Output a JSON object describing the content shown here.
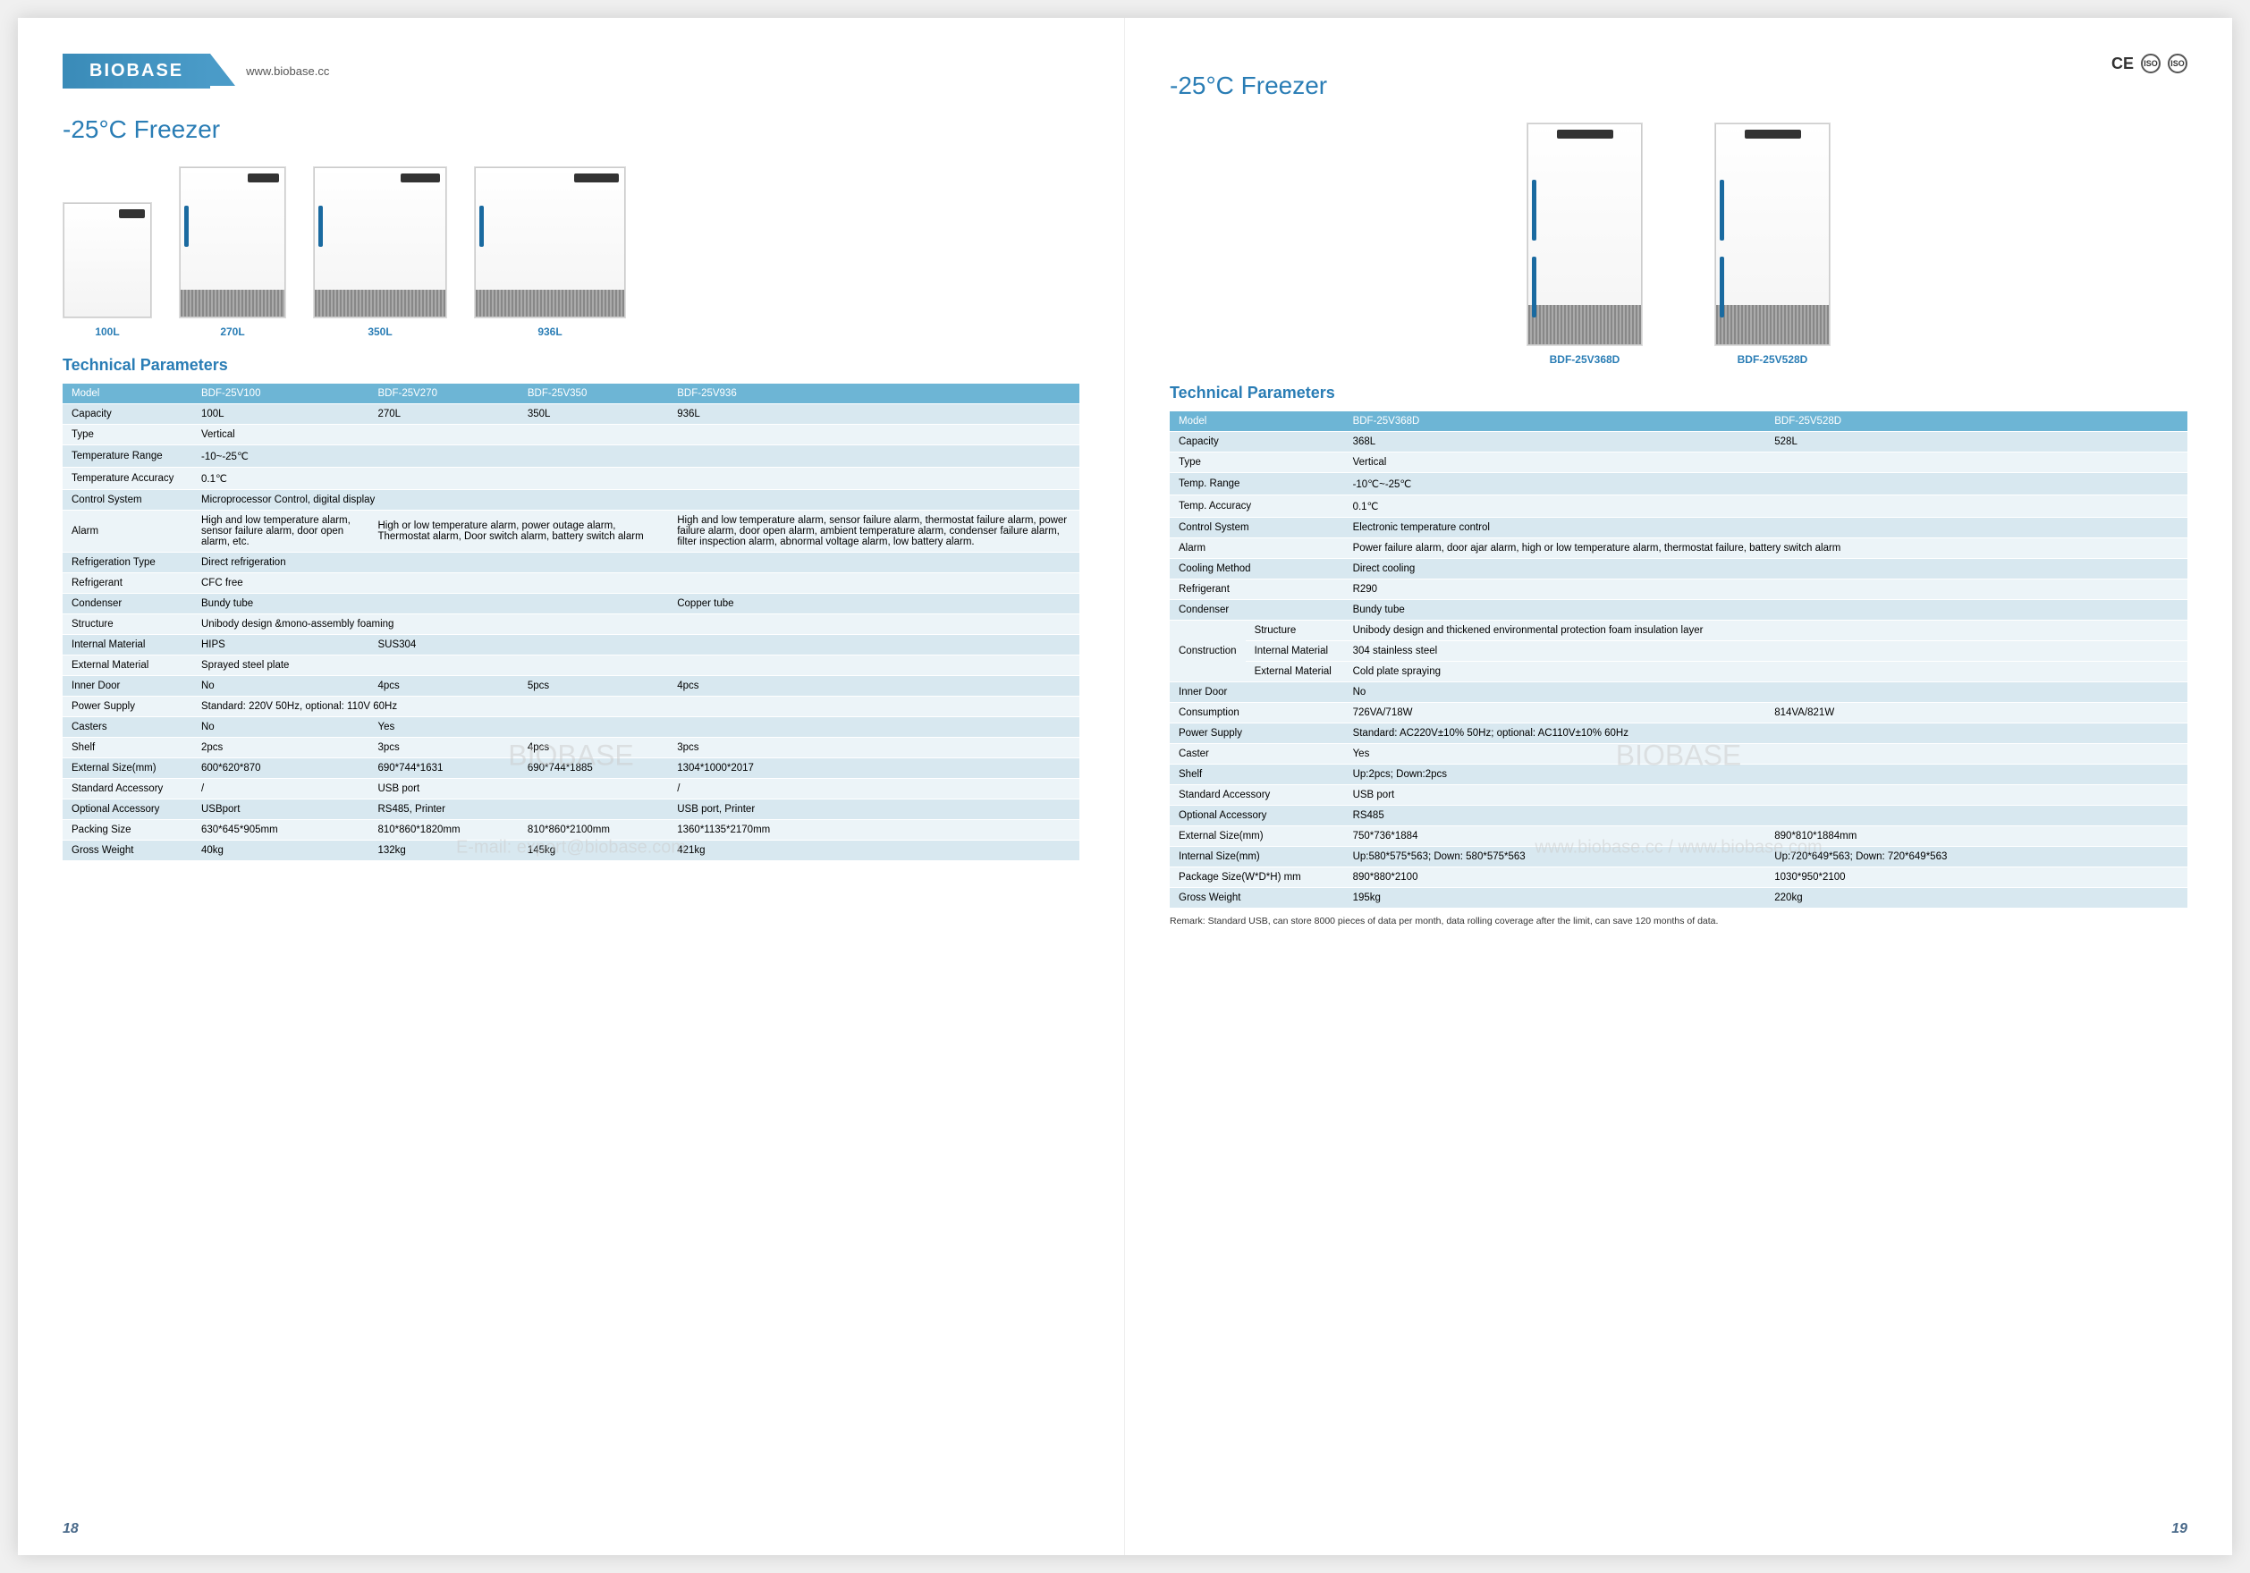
{
  "brand": "BIOBASE",
  "url": "www.biobase.cc",
  "cert": {
    "ce": "CE"
  },
  "watermark": {
    "big": "BIOBASE",
    "sub": "E-mail: export@biobase.com",
    "sub2": "www.biobase.cc / www.biobase.com"
  },
  "pageNumLeft": "18",
  "pageNumRight": "19",
  "left": {
    "title": "-25°C Freezer",
    "products": [
      {
        "label": "100L"
      },
      {
        "label": "270L"
      },
      {
        "label": "350L"
      },
      {
        "label": "936L"
      }
    ],
    "paramsTitle": "Technical Parameters",
    "header": [
      "Model",
      "BDF-25V100",
      "BDF-25V270",
      "BDF-25V350",
      "BDF-25V936"
    ],
    "rows": [
      {
        "k": "Capacity",
        "v": [
          "100L",
          "270L",
          "350L",
          "936L"
        ],
        "cls": "a"
      },
      {
        "k": "Type",
        "v": [
          "Vertical"
        ],
        "span": 4,
        "cls": "b"
      },
      {
        "k": "Temperature Range",
        "v": [
          "-10~-25℃"
        ],
        "span": 4,
        "cls": "a"
      },
      {
        "k": "Temperature Accuracy",
        "v": [
          "0.1℃"
        ],
        "span": 4,
        "cls": "b"
      },
      {
        "k": "Control System",
        "v": [
          "Microprocessor Control, digital display"
        ],
        "span": 4,
        "cls": "a"
      },
      {
        "k": "Alarm",
        "v": [
          "High and low temperature alarm, sensor failure alarm, door open alarm, etc.",
          "High or low temperature alarm, power outage alarm, Thermostat alarm, Door switch alarm, battery switch alarm",
          "",
          "High and low temperature alarm, sensor failure alarm, thermostat failure alarm, power failure alarm, door open alarm, ambient temperature alarm, condenser failure alarm, filter inspection alarm, abnormal voltage alarm, low battery alarm."
        ],
        "merge23": true,
        "cls": "b"
      },
      {
        "k": "Refrigeration Type",
        "v": [
          "Direct refrigeration"
        ],
        "span": 4,
        "cls": "a"
      },
      {
        "k": "Refrigerant",
        "v": [
          "CFC free"
        ],
        "span": 4,
        "cls": "b"
      },
      {
        "k": "Condenser",
        "v": [
          "Bundy tube",
          "",
          "",
          "Copper tube"
        ],
        "merge13": true,
        "cls": "a"
      },
      {
        "k": "Structure",
        "v": [
          "Unibody design &mono-assembly foaming"
        ],
        "span": 4,
        "cls": "b"
      },
      {
        "k": "Internal Material",
        "v": [
          "HIPS",
          "SUS304",
          "",
          ""
        ],
        "merge24": true,
        "cls": "a"
      },
      {
        "k": "External Material",
        "v": [
          "Sprayed steel plate"
        ],
        "span": 4,
        "cls": "b"
      },
      {
        "k": "Inner Door",
        "v": [
          "No",
          "4pcs",
          "5pcs",
          "4pcs"
        ],
        "cls": "a"
      },
      {
        "k": "Power Supply",
        "v": [
          "Standard: 220V 50Hz, optional: 110V 60Hz"
        ],
        "span": 4,
        "cls": "b"
      },
      {
        "k": "Casters",
        "v": [
          "No",
          "Yes",
          "",
          ""
        ],
        "merge24": true,
        "cls": "a"
      },
      {
        "k": "Shelf",
        "v": [
          "2pcs",
          "3pcs",
          "4pcs",
          "3pcs"
        ],
        "cls": "b"
      },
      {
        "k": "External Size(mm)",
        "v": [
          "600*620*870",
          "690*744*1631",
          "690*744*1885",
          "1304*1000*2017"
        ],
        "cls": "a"
      },
      {
        "k": "Standard Accessory",
        "v": [
          "/",
          "USB port",
          "",
          "/"
        ],
        "merge23": true,
        "cls": "b"
      },
      {
        "k": "Optional Accessory",
        "v": [
          "USBport",
          "RS485, Printer",
          "",
          "USB port, Printer"
        ],
        "merge23": true,
        "cls": "a"
      },
      {
        "k": "Packing Size",
        "v": [
          "630*645*905mm",
          "810*860*1820mm",
          "810*860*2100mm",
          "1360*1135*2170mm"
        ],
        "cls": "b"
      },
      {
        "k": "Gross Weight",
        "v": [
          "40kg",
          "132kg",
          "145kg",
          "421kg"
        ],
        "cls": "a"
      }
    ]
  },
  "right": {
    "title": "-25°C Freezer",
    "products": [
      {
        "label": "BDF-25V368D"
      },
      {
        "label": "BDF-25V528D"
      }
    ],
    "paramsTitle": "Technical Parameters",
    "header": [
      "Model",
      "BDF-25V368D",
      "BDF-25V528D"
    ],
    "rows": [
      {
        "k": "Capacity",
        "v": [
          "368L",
          "528L"
        ],
        "cls": "a"
      },
      {
        "k": "Type",
        "v": [
          "Vertical"
        ],
        "span": 2,
        "cls": "b"
      },
      {
        "k": "Temp. Range",
        "v": [
          "-10℃~-25℃"
        ],
        "span": 2,
        "cls": "a"
      },
      {
        "k": "Temp. Accuracy",
        "v": [
          "0.1℃"
        ],
        "span": 2,
        "cls": "b"
      },
      {
        "k": "Control System",
        "v": [
          "Electronic temperature control"
        ],
        "span": 2,
        "cls": "a"
      },
      {
        "k": "Alarm",
        "v": [
          "Power failure alarm, door ajar alarm, high or low temperature alarm, thermostat failure, battery switch alarm"
        ],
        "span": 2,
        "cls": "b"
      },
      {
        "k": "Cooling Method",
        "v": [
          "Direct cooling"
        ],
        "span": 2,
        "cls": "a"
      },
      {
        "k": "Refrigerant",
        "v": [
          "R290"
        ],
        "span": 2,
        "cls": "b"
      },
      {
        "k": "Condenser",
        "v": [
          "Bundy tube"
        ],
        "span": 2,
        "cls": "a"
      }
    ],
    "construction": {
      "label": "Construction",
      "sub": [
        {
          "k": "Structure",
          "v": "Unibody design and thickened environmental protection foam insulation layer"
        },
        {
          "k": "Internal Material",
          "v": "304 stainless steel"
        },
        {
          "k": "External Material",
          "v": "Cold plate spraying"
        }
      ]
    },
    "rows2": [
      {
        "k": "Inner Door",
        "v": [
          "No"
        ],
        "span": 2,
        "cls": "a"
      },
      {
        "k": "Consumption",
        "v": [
          "726VA/718W",
          "814VA/821W"
        ],
        "cls": "b"
      },
      {
        "k": "Power Supply",
        "v": [
          "Standard: AC220V±10% 50Hz; optional: AC110V±10% 60Hz"
        ],
        "span": 2,
        "cls": "a"
      },
      {
        "k": "Caster",
        "v": [
          "Yes"
        ],
        "span": 2,
        "cls": "b"
      },
      {
        "k": "Shelf",
        "v": [
          "Up:2pcs; Down:2pcs"
        ],
        "span": 2,
        "cls": "a"
      },
      {
        "k": "Standard Accessory",
        "v": [
          "USB port"
        ],
        "span": 2,
        "cls": "b"
      },
      {
        "k": "Optional Accessory",
        "v": [
          "RS485"
        ],
        "span": 2,
        "cls": "a"
      },
      {
        "k": "External Size(mm)",
        "v": [
          "750*736*1884",
          "890*810*1884mm"
        ],
        "cls": "b"
      },
      {
        "k": "Internal Size(mm)",
        "v": [
          "Up:580*575*563; Down: 580*575*563",
          "Up:720*649*563; Down: 720*649*563"
        ],
        "cls": "a"
      },
      {
        "k": "Package Size(W*D*H) mm",
        "v": [
          "890*880*2100",
          "1030*950*2100"
        ],
        "cls": "b"
      },
      {
        "k": "Gross Weight",
        "v": [
          "195kg",
          "220kg"
        ],
        "cls": "a"
      }
    ],
    "remark": "Remark: Standard USB, can store 8000 pieces of data per month, data rolling coverage after the limit, can save 120 months of data."
  }
}
